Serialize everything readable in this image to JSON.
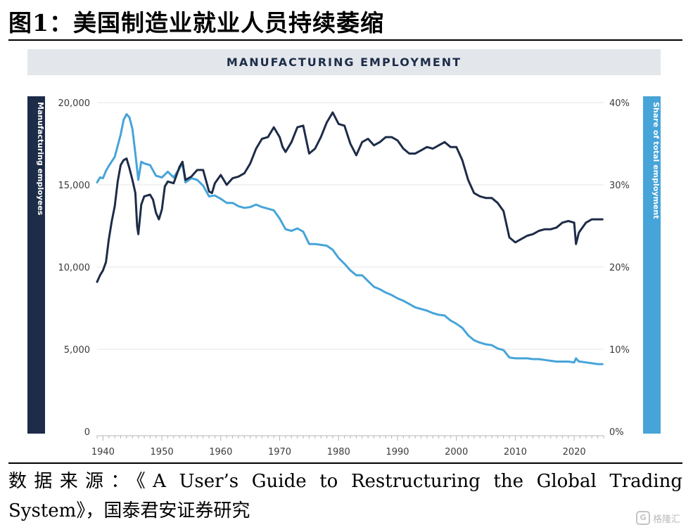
{
  "figure": {
    "title": "图1：美国制造业就业人员持续萎缩",
    "source_line1": "数据来源：《A User’s Guide to Restructuring the Global Trading",
    "source_line2": "System》，国泰君安证券研究"
  },
  "watermark": {
    "icon": "G",
    "text": "格隆汇"
  },
  "colors": {
    "employees": "#1d2c48",
    "share": "#46a4d9",
    "banner_bg": "#e3e7ec",
    "grid": "#e6e6e6"
  },
  "chart_data": {
    "type": "line",
    "title": "MANUFACTURING EMPLOYMENT",
    "ylabel": "Manufacturing employees",
    "y2label": "Share of total employment",
    "xlim": [
      1939,
      2025
    ],
    "ylim": [
      0,
      20000
    ],
    "y2lim": [
      0,
      40
    ],
    "x_ticks": [
      "1940",
      "1950",
      "1960",
      "1970",
      "1980",
      "1990",
      "2000",
      "2010",
      "2020"
    ],
    "y_ticks": [
      "0",
      "5,000",
      "10,000",
      "15,000",
      "20,000"
    ],
    "y2_ticks": [
      "0%",
      "10%",
      "20%",
      "30%",
      "40%"
    ],
    "series": [
      {
        "name": "Manufacturing employees",
        "axis": "left",
        "points": [
          [
            1939,
            9100
          ],
          [
            1939.5,
            9500
          ],
          [
            1940,
            9800
          ],
          [
            1940.5,
            10300
          ],
          [
            1941,
            11700
          ],
          [
            1941.5,
            12800
          ],
          [
            1942,
            13700
          ],
          [
            1942.5,
            15200
          ],
          [
            1943,
            16200
          ],
          [
            1943.5,
            16500
          ],
          [
            1944,
            16600
          ],
          [
            1944.5,
            16000
          ],
          [
            1945,
            15300
          ],
          [
            1945.5,
            14500
          ],
          [
            1945.8,
            12500
          ],
          [
            1946,
            12000
          ],
          [
            1946.5,
            13800
          ],
          [
            1947,
            14300
          ],
          [
            1948,
            14400
          ],
          [
            1948.5,
            14100
          ],
          [
            1949,
            13300
          ],
          [
            1949.5,
            12900
          ],
          [
            1950,
            13500
          ],
          [
            1950.5,
            14900
          ],
          [
            1951,
            15200
          ],
          [
            1952,
            15100
          ],
          [
            1953,
            16100
          ],
          [
            1953.5,
            16400
          ],
          [
            1954,
            15300
          ],
          [
            1955,
            15500
          ],
          [
            1956,
            15900
          ],
          [
            1957,
            15900
          ],
          [
            1958,
            14600
          ],
          [
            1958.5,
            14500
          ],
          [
            1959,
            15100
          ],
          [
            1960,
            15600
          ],
          [
            1961,
            15000
          ],
          [
            1962,
            15400
          ],
          [
            1963,
            15500
          ],
          [
            1964,
            15700
          ],
          [
            1965,
            16300
          ],
          [
            1966,
            17200
          ],
          [
            1967,
            17800
          ],
          [
            1968,
            17900
          ],
          [
            1969,
            18500
          ],
          [
            1970,
            17900
          ],
          [
            1970.5,
            17300
          ],
          [
            1971,
            17000
          ],
          [
            1972,
            17600
          ],
          [
            1973,
            18500
          ],
          [
            1974,
            18600
          ],
          [
            1975,
            16900
          ],
          [
            1976,
            17200
          ],
          [
            1977,
            17900
          ],
          [
            1978,
            18800
          ],
          [
            1979,
            19400
          ],
          [
            1980,
            18700
          ],
          [
            1981,
            18600
          ],
          [
            1982,
            17500
          ],
          [
            1983,
            16800
          ],
          [
            1984,
            17600
          ],
          [
            1985,
            17800
          ],
          [
            1986,
            17400
          ],
          [
            1987,
            17600
          ],
          [
            1988,
            17900
          ],
          [
            1989,
            17900
          ],
          [
            1990,
            17700
          ],
          [
            1991,
            17200
          ],
          [
            1992,
            16900
          ],
          [
            1993,
            16900
          ],
          [
            1994,
            17100
          ],
          [
            1995,
            17300
          ],
          [
            1996,
            17200
          ],
          [
            1997,
            17400
          ],
          [
            1998,
            17600
          ],
          [
            1999,
            17300
          ],
          [
            2000,
            17300
          ],
          [
            2001,
            16500
          ],
          [
            2002,
            15300
          ],
          [
            2003,
            14500
          ],
          [
            2004,
            14300
          ],
          [
            2005,
            14200
          ],
          [
            2006,
            14200
          ],
          [
            2007,
            13900
          ],
          [
            2008,
            13400
          ],
          [
            2009,
            11800
          ],
          [
            2010,
            11500
          ],
          [
            2011,
            11700
          ],
          [
            2012,
            11900
          ],
          [
            2013,
            12000
          ],
          [
            2014,
            12200
          ],
          [
            2015,
            12300
          ],
          [
            2016,
            12300
          ],
          [
            2017,
            12400
          ],
          [
            2018,
            12700
          ],
          [
            2019,
            12800
          ],
          [
            2020,
            12700
          ],
          [
            2020.3,
            11400
          ],
          [
            2020.8,
            12100
          ],
          [
            2021,
            12200
          ],
          [
            2022,
            12700
          ],
          [
            2023,
            12900
          ],
          [
            2024,
            12900
          ],
          [
            2024.8,
            12900
          ]
        ]
      },
      {
        "name": "Share of total employment",
        "axis": "right",
        "points": [
          [
            1939,
            30.3
          ],
          [
            1939.5,
            30.9
          ],
          [
            1940,
            30.8
          ],
          [
            1940.5,
            31.7
          ],
          [
            1941,
            32.3
          ],
          [
            1942,
            33.4
          ],
          [
            1943,
            36.1
          ],
          [
            1943.5,
            37.9
          ],
          [
            1944,
            38.6
          ],
          [
            1944.5,
            38.2
          ],
          [
            1945,
            36.8
          ],
          [
            1945.5,
            33.8
          ],
          [
            1946,
            30.6
          ],
          [
            1946.5,
            32.8
          ],
          [
            1947,
            32.6
          ],
          [
            1948,
            32.4
          ],
          [
            1949,
            31.1
          ],
          [
            1950,
            30.9
          ],
          [
            1951,
            31.6
          ],
          [
            1952,
            30.9
          ],
          [
            1953,
            32.0
          ],
          [
            1953.5,
            32.6
          ],
          [
            1954,
            30.3
          ],
          [
            1955,
            30.8
          ],
          [
            1956,
            30.6
          ],
          [
            1957,
            29.9
          ],
          [
            1958,
            28.6
          ],
          [
            1959,
            28.7
          ],
          [
            1960,
            28.3
          ],
          [
            1961,
            27.8
          ],
          [
            1962,
            27.8
          ],
          [
            1963,
            27.4
          ],
          [
            1964,
            27.2
          ],
          [
            1965,
            27.3
          ],
          [
            1966,
            27.6
          ],
          [
            1967,
            27.3
          ],
          [
            1968,
            27.1
          ],
          [
            1969,
            26.9
          ],
          [
            1970,
            25.9
          ],
          [
            1971,
            24.6
          ],
          [
            1972,
            24.4
          ],
          [
            1973,
            24.7
          ],
          [
            1974,
            24.3
          ],
          [
            1975,
            22.8
          ],
          [
            1976,
            22.8
          ],
          [
            1977,
            22.7
          ],
          [
            1978,
            22.6
          ],
          [
            1979,
            22.1
          ],
          [
            1980,
            21.1
          ],
          [
            1981,
            20.4
          ],
          [
            1982,
            19.6
          ],
          [
            1983,
            19.0
          ],
          [
            1984,
            19.0
          ],
          [
            1985,
            18.3
          ],
          [
            1986,
            17.6
          ],
          [
            1987,
            17.3
          ],
          [
            1988,
            16.9
          ],
          [
            1989,
            16.6
          ],
          [
            1990,
            16.2
          ],
          [
            1991,
            15.9
          ],
          [
            1992,
            15.5
          ],
          [
            1993,
            15.1
          ],
          [
            1994,
            14.9
          ],
          [
            1995,
            14.7
          ],
          [
            1996,
            14.4
          ],
          [
            1997,
            14.2
          ],
          [
            1998,
            14.1
          ],
          [
            1999,
            13.5
          ],
          [
            2000,
            13.1
          ],
          [
            2001,
            12.6
          ],
          [
            2002,
            11.7
          ],
          [
            2003,
            11.1
          ],
          [
            2004,
            10.8
          ],
          [
            2005,
            10.6
          ],
          [
            2006,
            10.5
          ],
          [
            2007,
            10.1
          ],
          [
            2008,
            9.9
          ],
          [
            2009,
            9.0
          ],
          [
            2010,
            8.9
          ],
          [
            2011,
            8.9
          ],
          [
            2012,
            8.9
          ],
          [
            2013,
            8.8
          ],
          [
            2014,
            8.8
          ],
          [
            2015,
            8.7
          ],
          [
            2016,
            8.6
          ],
          [
            2017,
            8.5
          ],
          [
            2018,
            8.5
          ],
          [
            2019,
            8.5
          ],
          [
            2020,
            8.4
          ],
          [
            2020.3,
            8.9
          ],
          [
            2020.8,
            8.5
          ],
          [
            2021,
            8.5
          ],
          [
            2022,
            8.4
          ],
          [
            2023,
            8.3
          ],
          [
            2024,
            8.2
          ],
          [
            2024.8,
            8.2
          ]
        ]
      }
    ]
  }
}
